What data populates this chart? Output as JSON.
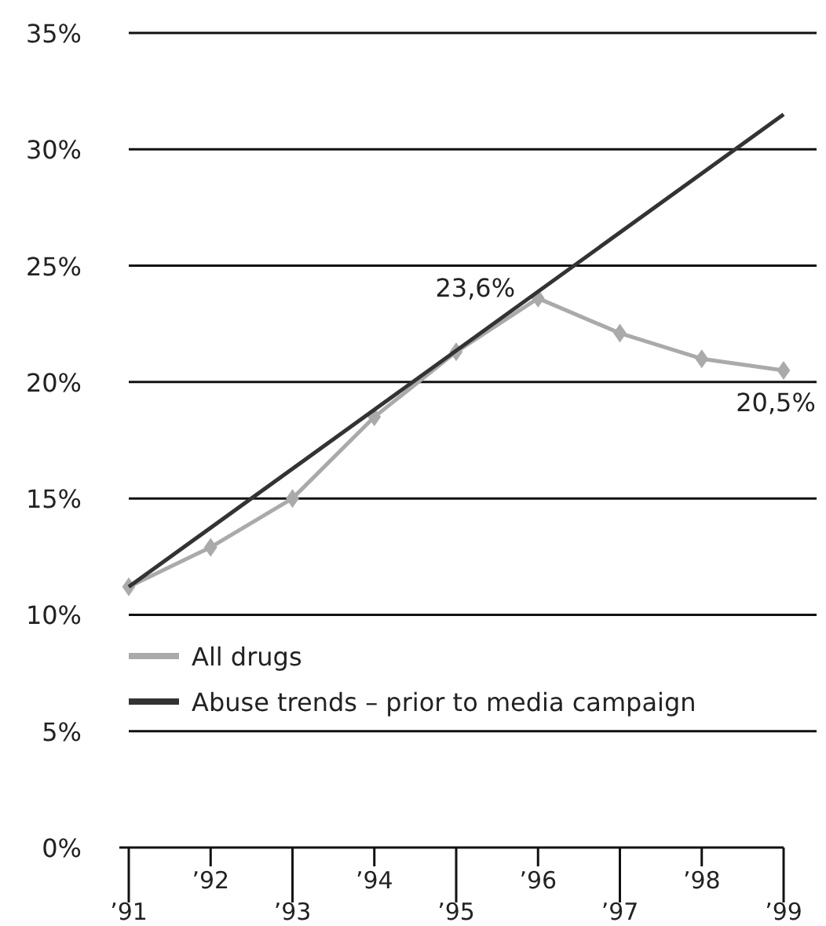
{
  "chart_data": {
    "type": "line",
    "categories": [
      "’91",
      "’92",
      "’93",
      "’94",
      "’95",
      "’96",
      "’97",
      "’98",
      "’99"
    ],
    "series": [
      {
        "name": "All drugs",
        "color": "#aaaaaa",
        "marker": "diamond",
        "values": [
          11.2,
          12.9,
          15.0,
          18.5,
          21.3,
          23.6,
          22.1,
          21.0,
          20.5
        ],
        "value_labels": [
          null,
          null,
          null,
          null,
          null,
          "23,6%",
          null,
          null,
          "20,5%"
        ]
      },
      {
        "name": "Abuse trends – prior to media campaign",
        "color": "#333333",
        "marker": "none",
        "x": [
          "’91",
          "’99"
        ],
        "values": [
          11.2,
          31.5
        ]
      }
    ],
    "ylim": [
      0,
      35
    ],
    "yticks": [
      {
        "value": 0,
        "label": "0%"
      },
      {
        "value": 5,
        "label": "5%"
      },
      {
        "value": 10,
        "label": "10%"
      },
      {
        "value": 15,
        "label": "15%"
      },
      {
        "value": 20,
        "label": "20%"
      },
      {
        "value": 25,
        "label": "25%"
      },
      {
        "value": 30,
        "label": "30%"
      },
      {
        "value": 35,
        "label": "35%"
      }
    ],
    "grid": "y",
    "legend": "bottom left"
  }
}
